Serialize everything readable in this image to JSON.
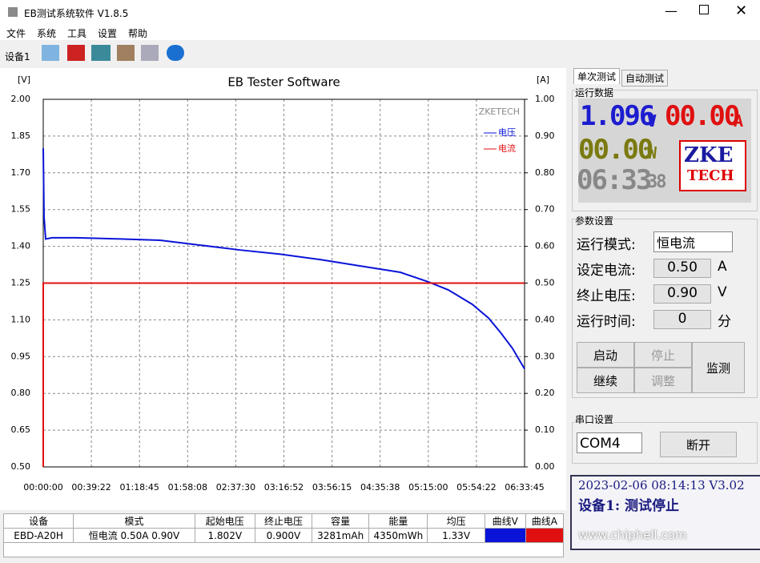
{
  "window": {
    "title": "EB测试系统软件 V1.8.5"
  },
  "menu": [
    "文件",
    "系统",
    "工具",
    "设置",
    "帮助"
  ],
  "toolbar": {
    "device_tab": "设备1"
  },
  "chart_data": {
    "type": "line",
    "title": "EB Tester Software",
    "y_label": "[V]",
    "y2_label": "[A]",
    "watermark": "ZKETECH",
    "xlim": [
      0,
      23625
    ],
    "xticks": [
      {
        "value": 0,
        "label": "00:00:00"
      },
      {
        "value": 2362,
        "label": "00:39:22"
      },
      {
        "value": 4725,
        "label": "01:18:45"
      },
      {
        "value": 7088,
        "label": "01:58:08"
      },
      {
        "value": 9450,
        "label": "02:37:30"
      },
      {
        "value": 11812,
        "label": "03:16:52"
      },
      {
        "value": 14175,
        "label": "03:56:15"
      },
      {
        "value": 16538,
        "label": "04:35:38"
      },
      {
        "value": 18900,
        "label": "05:15:00"
      },
      {
        "value": 21262,
        "label": "05:54:22"
      },
      {
        "value": 23625,
        "label": "06:33:45"
      }
    ],
    "ylim": [
      0.5,
      2.0
    ],
    "yticks": [
      {
        "value": 0.5,
        "label": "0.50"
      },
      {
        "value": 0.65,
        "label": "0.65"
      },
      {
        "value": 0.8,
        "label": "0.80"
      },
      {
        "value": 0.95,
        "label": "0.95"
      },
      {
        "value": 1.1,
        "label": "1.10"
      },
      {
        "value": 1.25,
        "label": "1.25"
      },
      {
        "value": 1.4,
        "label": "1.40"
      },
      {
        "value": 1.55,
        "label": "1.55"
      },
      {
        "value": 1.7,
        "label": "1.70"
      },
      {
        "value": 1.85,
        "label": "1.85"
      },
      {
        "value": 2,
        "label": "2.00"
      }
    ],
    "y2lim": [
      0,
      1
    ],
    "y2ticks": [
      {
        "value": 0,
        "label": "0.00"
      },
      {
        "value": 0.1,
        "label": "0.10"
      },
      {
        "value": 0.2,
        "label": "0.20"
      },
      {
        "value": 0.3,
        "label": "0.30"
      },
      {
        "value": 0.4,
        "label": "0.40"
      },
      {
        "value": 0.5,
        "label": "0.50"
      },
      {
        "value": 0.6,
        "label": "0.60"
      },
      {
        "value": 0.7,
        "label": "0.70"
      },
      {
        "value": 0.8,
        "label": "0.80"
      },
      {
        "value": 0.9,
        "label": "0.90"
      },
      {
        "value": 1,
        "label": "1.00"
      }
    ],
    "grid": true,
    "legend": "upper right",
    "series": [
      {
        "name": "电压",
        "color": "#0a14d8",
        "x": [
          0,
          39,
          118,
          432,
          1611,
          3773,
          5738,
          7703,
          9668,
          11633,
          13598,
          15563,
          17528,
          18903,
          19886,
          21065,
          21851,
          22440,
          23030,
          23625
        ],
        "values": [
          1.8,
          1.52,
          1.43,
          1.435,
          1.435,
          1.43,
          1.425,
          1.405,
          1.385,
          1.368,
          1.346,
          1.32,
          1.294,
          1.255,
          1.222,
          1.163,
          1.108,
          1.049,
          0.984,
          0.9
        ]
      },
      {
        "name": "电流",
        "color": "#e01010",
        "axis": "y2",
        "x": [
          0,
          0,
          23625
        ],
        "values": [
          0,
          0.5,
          0.5
        ]
      }
    ]
  },
  "panel": {
    "tabs": [
      "单次测试",
      "自动测试"
    ],
    "run_data": {
      "title": "运行数据",
      "voltage": "1.096",
      "voltage_unit": "V",
      "current": "00.00",
      "current_unit": "A",
      "power": "00.00",
      "power_unit": "W",
      "time": "06:33",
      "seconds": "38",
      "logo": [
        "ZKE",
        "TECH"
      ]
    },
    "params": {
      "title": "参数设置",
      "rows": [
        [
          "运行模式:",
          "恒电流",
          ""
        ],
        [
          "设定电流:",
          "0.50",
          "A"
        ],
        [
          "终止电压:",
          "0.90",
          "V"
        ],
        [
          "运行时间:",
          "0",
          "分"
        ]
      ]
    },
    "buttons": [
      "启动",
      "停止",
      "继续",
      "调整",
      "监测"
    ],
    "serial": {
      "title": "串口设置",
      "port": "COM4",
      "button": "断开"
    },
    "status": {
      "line1": "2023-02-06 08:14:13 V3.02",
      "line2": "设备1: 测试停止",
      "watermark": "www.chiphell.com"
    }
  },
  "table": {
    "headers": [
      "设备",
      "模式",
      "起始电压",
      "终止电压",
      "容量",
      "能量",
      "均压",
      "曲线V",
      "曲线A"
    ],
    "rows": [
      [
        "EBD-A20H",
        "恒电流  0.50A  0.90V",
        "1.802V",
        "0.900V",
        "3281mAh",
        "4350mWh",
        "1.33V"
      ]
    ]
  }
}
